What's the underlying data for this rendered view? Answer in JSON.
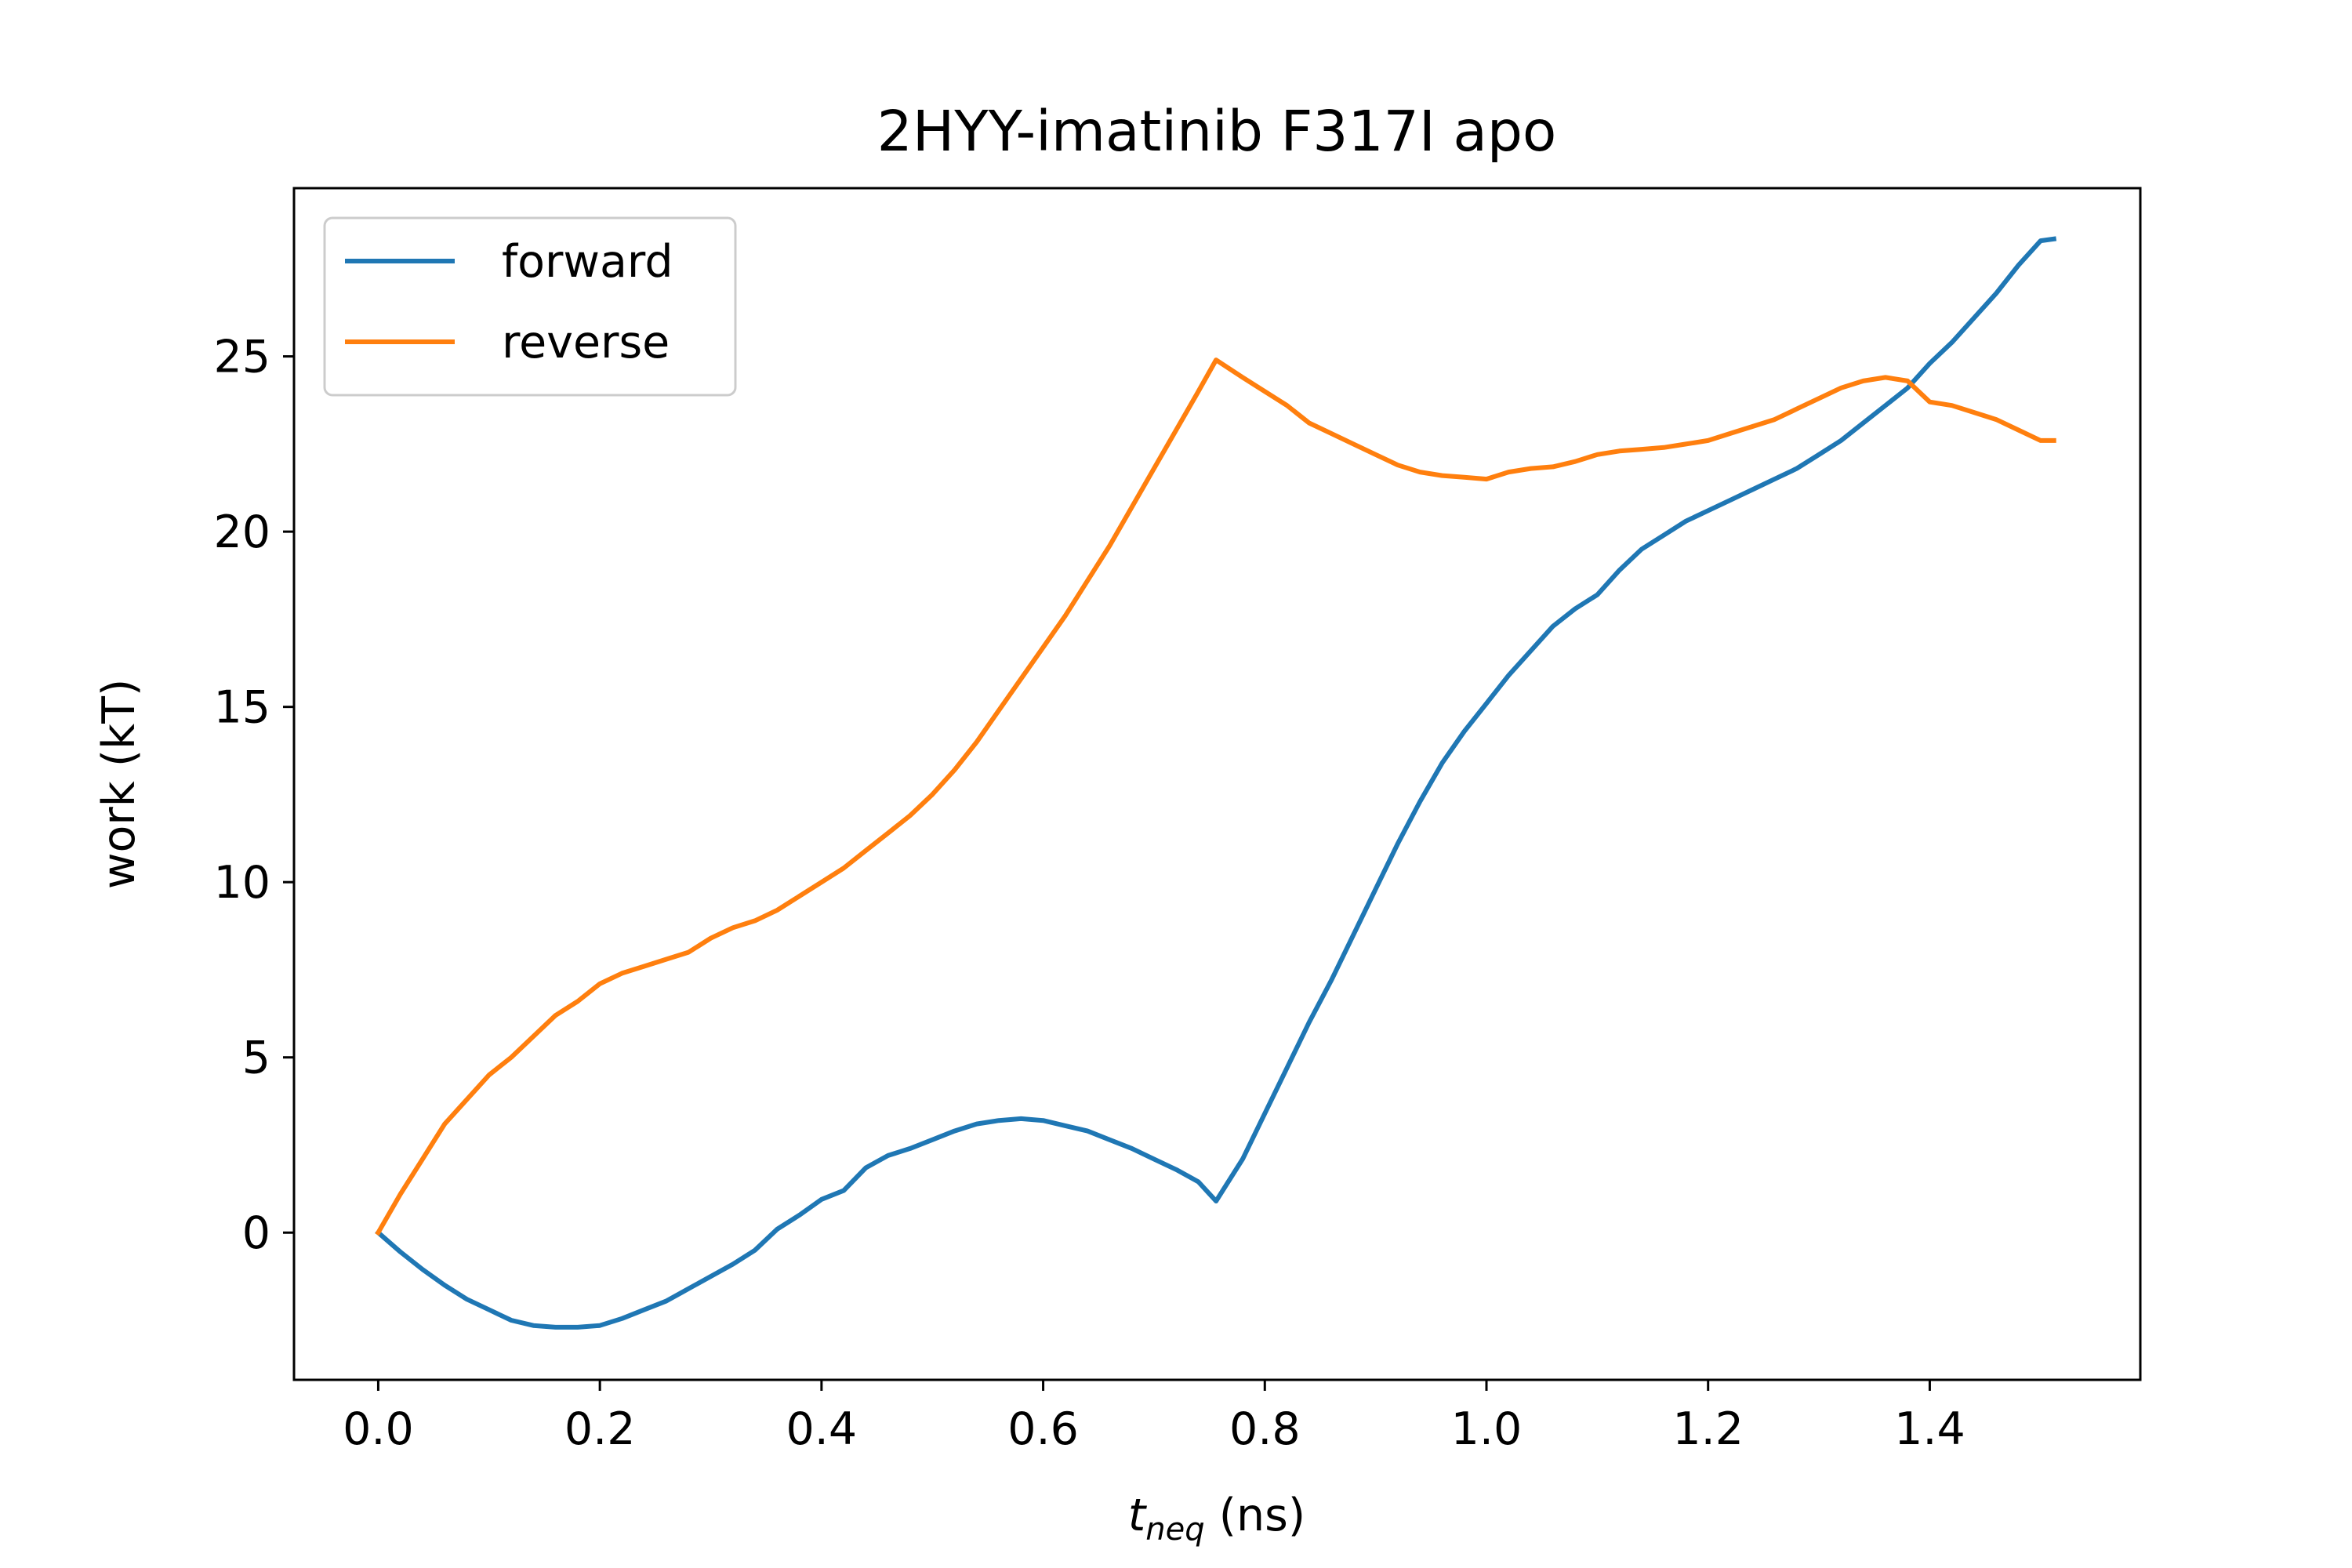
{
  "chart_data": {
    "type": "line",
    "title": "2HYY-imatinib F317I apo",
    "xlabel": {
      "main": "t",
      "sub": "neq",
      "suffix": " (ns)"
    },
    "ylabel": "work (kT)",
    "xlim": [
      -0.076,
      1.59
    ],
    "ylim": [
      -4.2,
      29.8
    ],
    "xticks": [
      0.0,
      0.2,
      0.4,
      0.6,
      0.8,
      1.0,
      1.2,
      1.4
    ],
    "xtick_labels": [
      "0.0",
      "0.2",
      "0.4",
      "0.6",
      "0.8",
      "1.0",
      "1.2",
      "1.4"
    ],
    "yticks": [
      0,
      5,
      10,
      15,
      20,
      25
    ],
    "ytick_labels": [
      "0",
      "5",
      "10",
      "15",
      "20",
      "25"
    ],
    "grid": false,
    "legend_position": "top-left",
    "series": [
      {
        "name": "forward",
        "color": "#1f77b4",
        "x": [
          0.0,
          0.02,
          0.04,
          0.06,
          0.08,
          0.1,
          0.12,
          0.14,
          0.16,
          0.18,
          0.2,
          0.22,
          0.24,
          0.26,
          0.28,
          0.3,
          0.32,
          0.34,
          0.36,
          0.38,
          0.4,
          0.42,
          0.44,
          0.46,
          0.48,
          0.5,
          0.52,
          0.54,
          0.56,
          0.58,
          0.6,
          0.62,
          0.64,
          0.66,
          0.68,
          0.7,
          0.72,
          0.74,
          0.756,
          0.78,
          0.8,
          0.82,
          0.84,
          0.86,
          0.88,
          0.9,
          0.92,
          0.94,
          0.96,
          0.98,
          1.0,
          1.02,
          1.04,
          1.06,
          1.08,
          1.1,
          1.12,
          1.14,
          1.16,
          1.18,
          1.2,
          1.22,
          1.24,
          1.26,
          1.28,
          1.3,
          1.32,
          1.34,
          1.36,
          1.38,
          1.4,
          1.42,
          1.44,
          1.46,
          1.48,
          1.5,
          1.512
        ],
        "y": [
          0.0,
          -0.55,
          -1.05,
          -1.5,
          -1.9,
          -2.2,
          -2.5,
          -2.65,
          -2.7,
          -2.7,
          -2.65,
          -2.45,
          -2.2,
          -1.95,
          -1.6,
          -1.25,
          -0.9,
          -0.5,
          0.1,
          0.5,
          0.95,
          1.2,
          1.85,
          2.2,
          2.4,
          2.65,
          2.9,
          3.1,
          3.2,
          3.25,
          3.2,
          3.05,
          2.9,
          2.65,
          2.4,
          2.1,
          1.8,
          1.45,
          0.9,
          2.1,
          3.4,
          4.7,
          6.0,
          7.2,
          8.5,
          9.8,
          11.1,
          12.3,
          13.4,
          14.3,
          15.1,
          15.9,
          16.6,
          17.3,
          17.8,
          18.2,
          18.9,
          19.5,
          19.9,
          20.3,
          20.6,
          20.9,
          21.2,
          21.5,
          21.8,
          22.2,
          22.6,
          23.1,
          23.6,
          24.1,
          24.8,
          25.4,
          26.1,
          26.8,
          27.6,
          28.3,
          28.35
        ]
      },
      {
        "name": "reverse",
        "color": "#ff7f0e",
        "x": [
          0.0,
          0.02,
          0.04,
          0.06,
          0.08,
          0.1,
          0.12,
          0.14,
          0.16,
          0.18,
          0.2,
          0.22,
          0.24,
          0.26,
          0.28,
          0.3,
          0.32,
          0.34,
          0.36,
          0.38,
          0.4,
          0.42,
          0.44,
          0.46,
          0.48,
          0.5,
          0.52,
          0.54,
          0.56,
          0.58,
          0.6,
          0.62,
          0.64,
          0.66,
          0.68,
          0.7,
          0.72,
          0.74,
          0.756,
          0.78,
          0.8,
          0.82,
          0.84,
          0.86,
          0.88,
          0.9,
          0.92,
          0.94,
          0.96,
          0.98,
          1.0,
          1.02,
          1.04,
          1.06,
          1.08,
          1.1,
          1.12,
          1.14,
          1.16,
          1.18,
          1.2,
          1.22,
          1.24,
          1.26,
          1.28,
          1.3,
          1.32,
          1.34,
          1.36,
          1.38,
          1.4,
          1.42,
          1.44,
          1.46,
          1.48,
          1.5,
          1.512
        ],
        "y": [
          0.0,
          1.1,
          2.1,
          3.1,
          3.8,
          4.5,
          5.0,
          5.6,
          6.2,
          6.6,
          7.1,
          7.4,
          7.6,
          7.8,
          8.0,
          8.4,
          8.7,
          8.9,
          9.2,
          9.6,
          10.0,
          10.4,
          10.9,
          11.4,
          11.9,
          12.5,
          13.2,
          14.0,
          14.9,
          15.8,
          16.7,
          17.6,
          18.6,
          19.6,
          20.7,
          21.8,
          22.9,
          24.0,
          24.9,
          24.4,
          24.0,
          23.6,
          23.1,
          22.8,
          22.5,
          22.2,
          21.9,
          21.7,
          21.6,
          21.55,
          21.5,
          21.7,
          21.8,
          21.85,
          22.0,
          22.2,
          22.3,
          22.35,
          22.4,
          22.5,
          22.6,
          22.8,
          23.0,
          23.2,
          23.5,
          23.8,
          24.1,
          24.3,
          24.4,
          24.3,
          23.7,
          23.6,
          23.4,
          23.2,
          22.9,
          22.6,
          22.6
        ]
      }
    ]
  }
}
